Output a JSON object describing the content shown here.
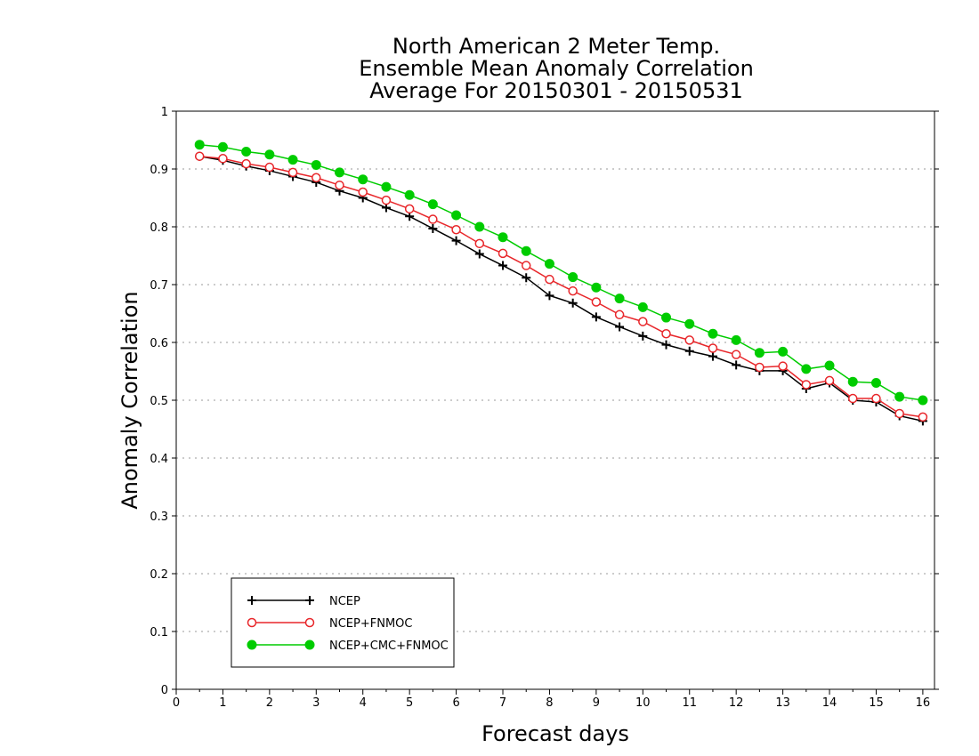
{
  "chart_data": {
    "type": "line",
    "title": [
      "North American 2 Meter Temp.",
      "Ensemble Mean Anomaly Correlation",
      "Average For 20150301 - 20150531"
    ],
    "xlabel": "Forecast days",
    "ylabel": "Anomaly Correlation",
    "xlim": [
      0,
      16.25
    ],
    "ylim": [
      0,
      1
    ],
    "xticks": [
      "0",
      "1",
      "2",
      "3",
      "4",
      "5",
      "6",
      "7",
      "8",
      "9",
      "10",
      "11",
      "12",
      "13",
      "14",
      "15",
      "16"
    ],
    "yticks": [
      "0",
      "0.1",
      "0.2",
      "0.3",
      "0.4",
      "0.5",
      "0.6",
      "0.7",
      "0.8",
      "0.9",
      "1"
    ],
    "grid": "horizontal dotted",
    "legend_position": "bottom-left",
    "x": [
      0.5,
      1,
      1.5,
      2,
      2.5,
      3,
      3.5,
      4,
      4.5,
      5,
      5.5,
      6,
      6.5,
      7,
      7.5,
      8,
      8.5,
      9,
      9.5,
      10,
      10.5,
      11,
      11.5,
      12,
      12.5,
      13,
      13.5,
      14,
      14.5,
      15,
      15.5,
      16
    ],
    "series": [
      {
        "name": "NCEP",
        "color": "#000000",
        "marker": "plus",
        "values": [
          0.922,
          0.915,
          0.905,
          0.897,
          0.887,
          0.877,
          0.862,
          0.85,
          0.833,
          0.818,
          0.797,
          0.776,
          0.753,
          0.733,
          0.712,
          0.681,
          0.668,
          0.644,
          0.627,
          0.611,
          0.596,
          0.585,
          0.576,
          0.561,
          0.551,
          0.551,
          0.52,
          0.53,
          0.5,
          0.497,
          0.473,
          0.464
        ]
      },
      {
        "name": "NCEP+FNMOC",
        "color": "#e8262a",
        "marker": "open-circle",
        "values": [
          0.922,
          0.918,
          0.909,
          0.903,
          0.894,
          0.885,
          0.872,
          0.86,
          0.846,
          0.831,
          0.813,
          0.795,
          0.771,
          0.754,
          0.733,
          0.709,
          0.689,
          0.67,
          0.648,
          0.636,
          0.615,
          0.604,
          0.59,
          0.579,
          0.557,
          0.559,
          0.527,
          0.534,
          0.503,
          0.503,
          0.477,
          0.471
        ]
      },
      {
        "name": "NCEP+CMC+FNMOC",
        "color": "#00cc00",
        "marker": "filled-circle",
        "values": [
          0.942,
          0.938,
          0.93,
          0.925,
          0.916,
          0.907,
          0.894,
          0.882,
          0.869,
          0.855,
          0.839,
          0.82,
          0.8,
          0.782,
          0.758,
          0.736,
          0.713,
          0.695,
          0.676,
          0.661,
          0.643,
          0.632,
          0.615,
          0.604,
          0.582,
          0.584,
          0.554,
          0.56,
          0.532,
          0.53,
          0.506,
          0.5
        ]
      }
    ]
  }
}
